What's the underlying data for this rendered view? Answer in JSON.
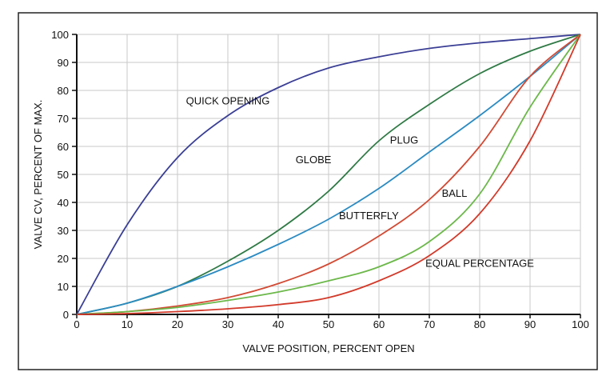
{
  "chart_data": {
    "type": "line",
    "title": "",
    "xlabel": "VALVE POSITION, PERCENT OPEN",
    "ylabel": "VALVE CV, PERCENT OF MAX.",
    "xlim": [
      0,
      100
    ],
    "ylim": [
      0,
      100
    ],
    "xticks": [
      "0",
      "10",
      "20",
      "30",
      "40",
      "50",
      "60",
      "70",
      "80",
      "90",
      "100"
    ],
    "yticks": [
      "0",
      "10",
      "20",
      "30",
      "40",
      "50",
      "60",
      "70",
      "80",
      "90",
      "100"
    ],
    "grid": true,
    "x": [
      0,
      10,
      20,
      30,
      40,
      50,
      60,
      70,
      80,
      90,
      100
    ],
    "series": [
      {
        "name": "QUICK OPENING",
        "color": "#3b3f95",
        "values": [
          0,
          32,
          56,
          71,
          81,
          88,
          92,
          95,
          97,
          98.5,
          100
        ],
        "label_at": [
          30,
          75
        ]
      },
      {
        "name": "GLOBE",
        "color": "#2f7a45",
        "values": [
          0,
          4,
          10,
          19,
          30,
          44,
          62,
          75,
          86,
          94,
          100
        ],
        "label_at": [
          47,
          54
        ]
      },
      {
        "name": "PLUG",
        "color": "#2b8bc2",
        "values": [
          0,
          4,
          10,
          17,
          25,
          34,
          45,
          58,
          71,
          85,
          100
        ],
        "label_at": [
          65,
          61
        ]
      },
      {
        "name": "BALL",
        "color": "#d24a34",
        "values": [
          0,
          1,
          3,
          6,
          11,
          18,
          28,
          41,
          60,
          85,
          100
        ],
        "label_at": [
          75,
          42
        ]
      },
      {
        "name": "BUTTERFLY",
        "color": "#6cb84a",
        "values": [
          0,
          1,
          2.5,
          5,
          8,
          12,
          17,
          26,
          43,
          74,
          100
        ],
        "label_at": [
          58,
          34
        ]
      },
      {
        "name": "EQUAL PERCENTAGE",
        "color": "#d23a2a",
        "values": [
          0,
          0.3,
          1,
          2,
          3.5,
          6,
          12,
          21,
          36,
          62,
          100
        ],
        "label_at": [
          80,
          17
        ]
      }
    ]
  }
}
